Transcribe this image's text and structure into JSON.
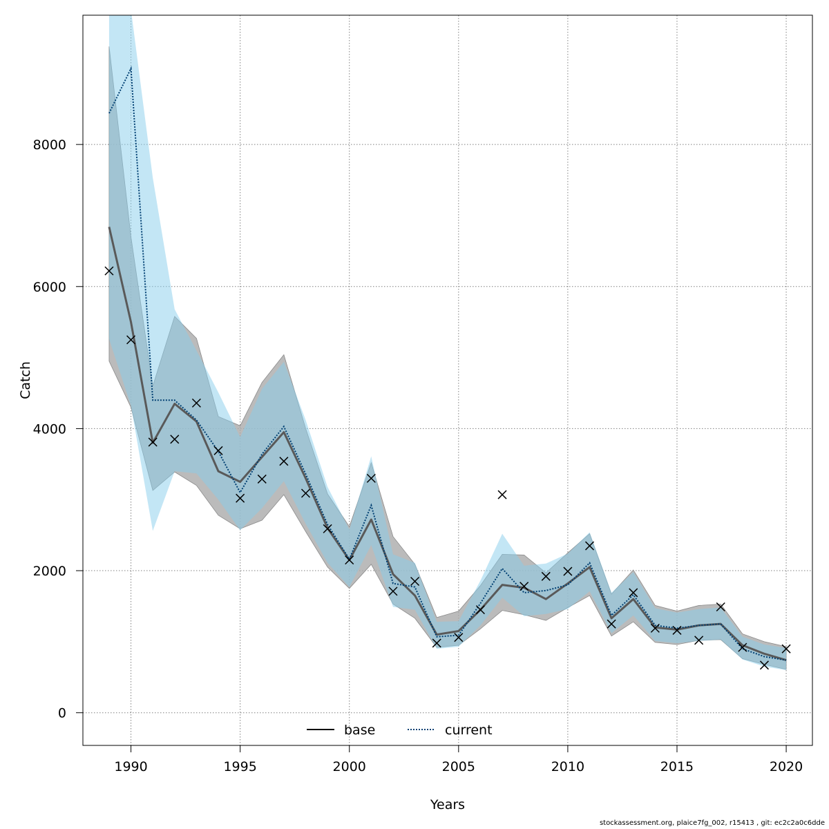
{
  "chart_data": {
    "type": "line",
    "xlabel": "Years",
    "ylabel": "Catch",
    "xlim": [
      1987.8,
      2021.2
    ],
    "ylim": [
      -460,
      9820
    ],
    "xticks": [
      1990,
      1995,
      2000,
      2005,
      2010,
      2015,
      2020
    ],
    "yticks": [
      0,
      2000,
      4000,
      6000,
      8000
    ],
    "grid": true,
    "legend_position": "bottom-center",
    "years": [
      1989,
      1990,
      1991,
      1992,
      1993,
      1994,
      1995,
      1996,
      1997,
      1998,
      1999,
      2000,
      2001,
      2002,
      2003,
      2004,
      2005,
      2006,
      2007,
      2008,
      2009,
      2010,
      2011,
      2012,
      2013,
      2014,
      2015,
      2016,
      2017,
      2018,
      2019,
      2020
    ],
    "observed": {
      "marker": "x",
      "values": [
        6220,
        5250,
        3810,
        3850,
        4360,
        3690,
        3020,
        3290,
        3540,
        3090,
        2590,
        2150,
        3300,
        1710,
        1850,
        980,
        1060,
        1450,
        3070,
        1780,
        1920,
        1990,
        2350,
        1250,
        1690,
        1190,
        1160,
        1020,
        1490,
        920,
        670,
        900
      ]
    },
    "series": [
      {
        "name": "base",
        "line_style": "solid",
        "color": "#595959",
        "band_color": "#aaaaaa",
        "values": [
          6840,
          5500,
          3800,
          4350,
          4100,
          3400,
          3250,
          3600,
          3950,
          3300,
          2600,
          2150,
          2720,
          1950,
          1650,
          1100,
          1150,
          1450,
          1800,
          1760,
          1600,
          1820,
          2050,
          1330,
          1600,
          1200,
          1170,
          1230,
          1250,
          950,
          830,
          740
        ],
        "lower": [
          4950,
          4300,
          3130,
          3390,
          3200,
          2780,
          2590,
          2710,
          3070,
          2550,
          2050,
          1750,
          2090,
          1530,
          1330,
          920,
          950,
          1180,
          1440,
          1380,
          1300,
          1480,
          1650,
          1080,
          1280,
          990,
          960,
          1020,
          1030,
          760,
          680,
          610
        ],
        "upper": [
          9380,
          6700,
          4600,
          5580,
          5270,
          4170,
          4040,
          4650,
          5040,
          4000,
          3080,
          2620,
          3520,
          2480,
          2090,
          1340,
          1430,
          1790,
          2230,
          2220,
          1970,
          2250,
          2520,
          1670,
          2010,
          1510,
          1430,
          1510,
          1530,
          1110,
          1000,
          930
        ]
      },
      {
        "name": "current",
        "line_style": "dotted",
        "color": "#003f72",
        "band_color": "#87ceeb",
        "values": [
          8440,
          9070,
          4400,
          4400,
          4120,
          3680,
          3100,
          3640,
          4030,
          3360,
          2650,
          2160,
          2920,
          1820,
          1770,
          1070,
          1090,
          1540,
          2030,
          1690,
          1720,
          1800,
          2110,
          1370,
          1660,
          1230,
          1190,
          1230,
          1250,
          900,
          790,
          740
        ],
        "lower": [
          5260,
          4320,
          2560,
          3400,
          3370,
          3000,
          2570,
          2880,
          3260,
          2660,
          2110,
          1770,
          2360,
          1490,
          1450,
          900,
          930,
          1230,
          1620,
          1360,
          1390,
          1460,
          1710,
          1120,
          1370,
          1010,
          980,
          1010,
          1030,
          750,
          650,
          600
        ],
        "upper": [
          9900,
          9900,
          7530,
          5680,
          5100,
          4510,
          3880,
          4560,
          4940,
          4120,
          3180,
          2580,
          3610,
          2230,
          2110,
          1280,
          1290,
          1860,
          2520,
          2070,
          2100,
          2240,
          2540,
          1690,
          1980,
          1470,
          1410,
          1460,
          1480,
          1070,
          960,
          910
        ]
      }
    ]
  },
  "footer": "stockassessment.org, plaice7fg_002, r15413 , git: ec2c2a0c6dde"
}
